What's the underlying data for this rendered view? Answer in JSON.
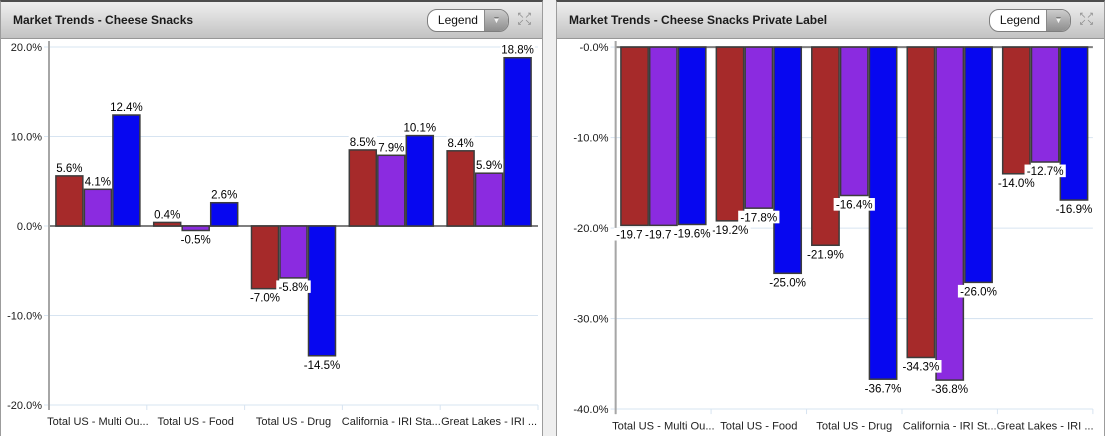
{
  "colors": {
    "red": "#A62A2A",
    "purple": "#8B2BE0",
    "blue": "#0707F0",
    "bar_border": "#3C3C3C",
    "grid": "#D7E4F1",
    "zero_line": "#7F7F7F",
    "axis": "#A6A6A6",
    "header_text": "#1B1B1B",
    "page_background": "#EFEFEF"
  },
  "icons": {
    "dropdown_arrow": "▼",
    "expand_top": "↖↗",
    "expand_bottom": "↙↘"
  },
  "panels": [
    {
      "title": "Market Trends - Cheese Snacks",
      "legend_label": "Legend"
    },
    {
      "title": "Market Trends - Cheese Snacks Private Label",
      "legend_label": "Legend"
    }
  ],
  "chart_data": [
    {
      "type": "bar",
      "title": "Market Trends - Cheese Snacks",
      "categories": [
        "Total US - Multi Ou...",
        "Total US - Food",
        "Total US - Drug",
        "California - IRI Sta...",
        "Great Lakes - IRI ..."
      ],
      "series": [
        {
          "color": "#A62A2A",
          "values": [
            5.6,
            0.4,
            -7.0,
            8.5,
            8.4
          ]
        },
        {
          "color": "#8B2BE0",
          "values": [
            4.1,
            -0.5,
            -5.8,
            7.9,
            5.9
          ]
        },
        {
          "color": "#0707F0",
          "values": [
            12.4,
            2.6,
            -14.5,
            10.1,
            18.8
          ]
        }
      ],
      "ylim": [
        -20,
        20
      ],
      "ytick_labels": [
        "20.0%",
        "10.0%",
        "0.0%",
        "-10.0%",
        "-20.0%"
      ],
      "value_labels": true,
      "grid": true,
      "legend_state": "collapsed"
    },
    {
      "type": "bar",
      "title": "Market Trends - Cheese Snacks Private Label",
      "categories": [
        "Total US - Multi Ou...",
        "Total US - Food",
        "Total US - Drug",
        "California - IRI St...",
        "Great Lakes - IRI ..."
      ],
      "series": [
        {
          "color": "#A62A2A",
          "values": [
            -19.7,
            -19.2,
            -21.9,
            -34.3,
            -14.0
          ]
        },
        {
          "color": "#8B2BE0",
          "values": [
            -19.7,
            -17.8,
            -16.4,
            -36.8,
            -12.7
          ]
        },
        {
          "color": "#0707F0",
          "values": [
            -19.6,
            -25.0,
            -36.7,
            -26.0,
            -16.9
          ]
        }
      ],
      "ylim": [
        -40,
        0
      ],
      "ytick_labels": [
        "-0.0%",
        "-10.0%",
        "-20.0%",
        "-30.0%",
        "-40.0%"
      ],
      "value_labels": true,
      "grid": true,
      "legend_state": "collapsed"
    }
  ]
}
